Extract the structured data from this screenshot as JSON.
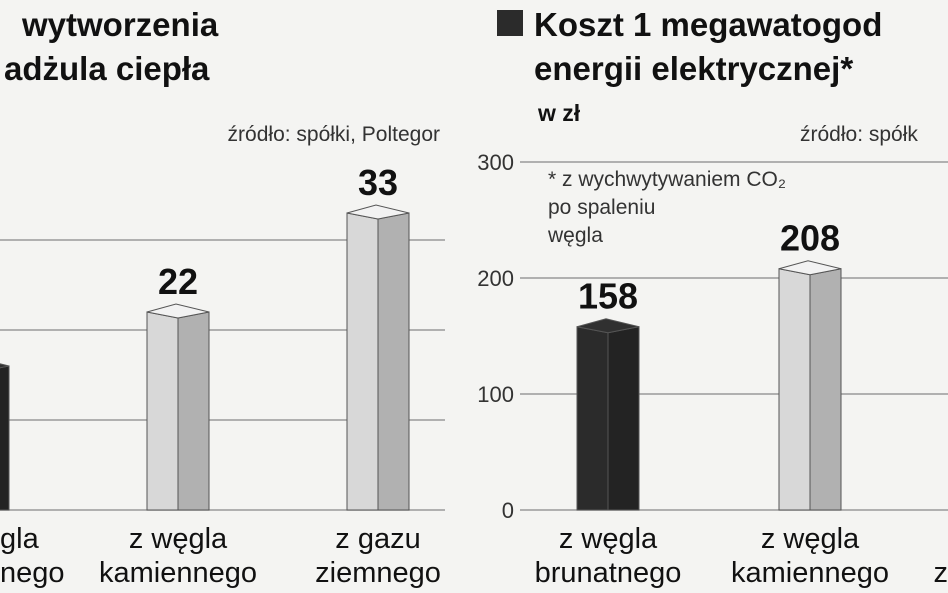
{
  "chart_data": [
    {
      "type": "bar",
      "title_lines": [
        "wytworzenia",
        "adżula ciepła"
      ],
      "source": "źródło: spółki, Poltegor",
      "categories": [
        [
          "gla",
          "nego"
        ],
        [
          "z węgla",
          "kamiennego"
        ],
        [
          "z gazu",
          "ziemnego"
        ]
      ],
      "values": [
        16,
        22,
        33
      ],
      "value_labels": [
        null,
        "22",
        "33"
      ],
      "colors": [
        "#2b2b2b",
        "#d8d8d8",
        "#d8d8d8"
      ],
      "ylim": [
        0,
        35
      ],
      "yticks": [
        0,
        10,
        20,
        30
      ],
      "tick_labels": false,
      "grid": true
    },
    {
      "type": "bar",
      "title_lines": [
        "Koszt 1 megawatogod",
        "energii elektrycznej*"
      ],
      "subtitle": "w zł",
      "source": "źródło: spółk",
      "annotation": [
        "* z wychwytywaniem CO₂",
        "po spaleniu",
        "węgla"
      ],
      "categories": [
        [
          "z węgla",
          "brunatnego"
        ],
        [
          "z węgla",
          "kamiennego"
        ],
        [
          null,
          "z"
        ]
      ],
      "values": [
        158,
        208,
        null
      ],
      "value_labels": [
        "158",
        "208",
        null
      ],
      "colors": [
        "#2b2b2b",
        "#d8d8d8",
        "#d8d8d8"
      ],
      "ylim": [
        0,
        300
      ],
      "yticks": [
        0,
        100,
        200,
        300
      ],
      "tick_labels": true,
      "grid": true
    }
  ]
}
